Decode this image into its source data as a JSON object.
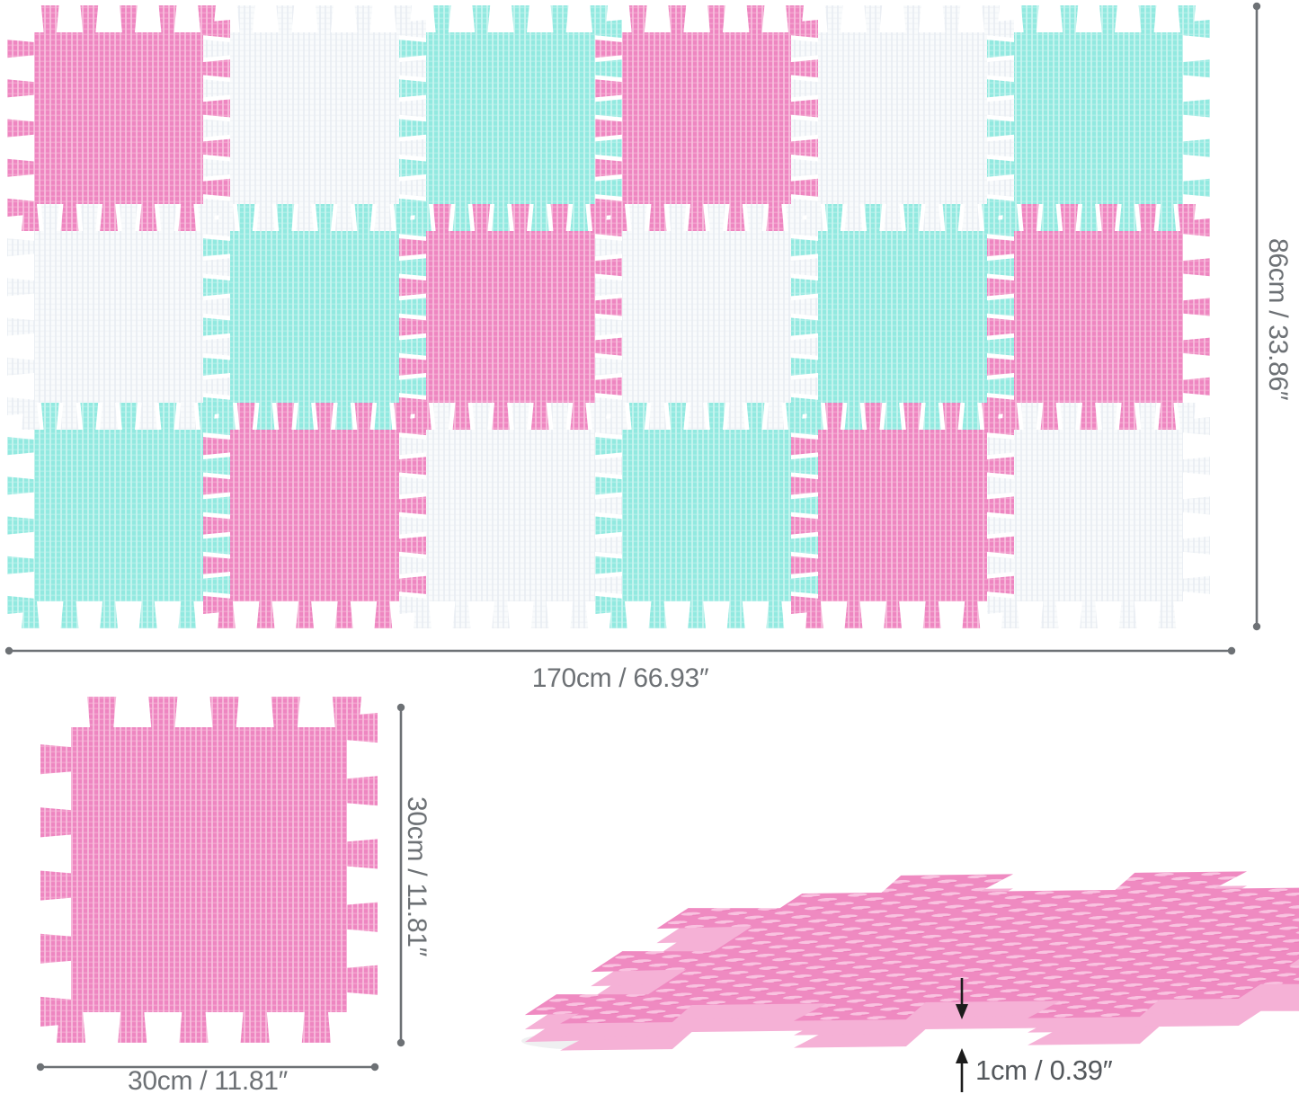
{
  "product": {
    "description_name": "interlocking-foam-play-mat-diagram"
  },
  "mat_grid": {
    "rows": 3,
    "cols": 6,
    "tile_total": 18,
    "pattern": [
      [
        "pink",
        "white",
        "teal",
        "pink",
        "white",
        "teal"
      ],
      [
        "white",
        "teal",
        "pink",
        "white",
        "teal",
        "pink"
      ],
      [
        "teal",
        "pink",
        "white",
        "teal",
        "pink",
        "white"
      ]
    ]
  },
  "single_tile": {
    "color": "pink"
  },
  "perspective_tile": {
    "color": "pink"
  },
  "labels": {
    "mat_width": "170cm / 66.93″",
    "mat_height": "86cm / 33.86″",
    "tile_width": "30cm / 11.81″",
    "tile_height": "30cm / 11.81″",
    "thickness": "1cm / 0.39″"
  },
  "colors": {
    "background": "#ffffff",
    "pink_base": "#ee86c1",
    "pink_light": "#f8bedd",
    "teal_base": "#92e9e0",
    "teal_light": "#c9f5f0",
    "white_base": "#f9fbfc",
    "white_light": "#e9eef2",
    "pink3d_base": "#ef8ac1",
    "pink3d_bump": "#f9c2e0",
    "pink3d_bump_dark": "#e571b0",
    "pink3d_side": "#f5b1d6",
    "shadow": "#9aa0a6",
    "dimension": "#6d7175",
    "arrow": "#1c1c1c",
    "thickness_text": "#54585c"
  }
}
